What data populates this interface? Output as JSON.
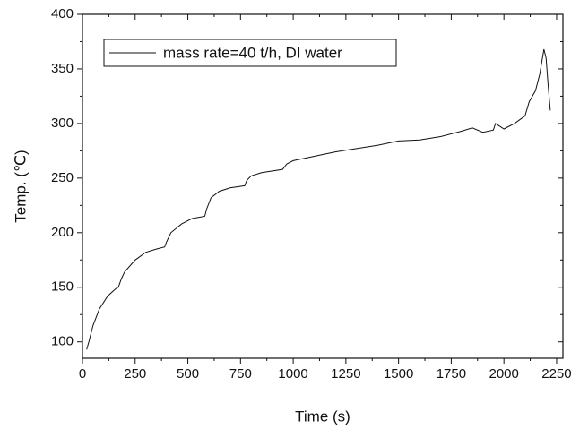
{
  "chart_data": {
    "type": "line",
    "xlabel": "Time (s)",
    "ylabel": "Temp. (℃)",
    "x": [
      20,
      30,
      50,
      80,
      120,
      160,
      170,
      185,
      200,
      250,
      300,
      350,
      390,
      400,
      420,
      470,
      520,
      580,
      590,
      610,
      650,
      700,
      770,
      780,
      800,
      850,
      950,
      970,
      1000,
      1100,
      1200,
      1300,
      1400,
      1500,
      1600,
      1700,
      1800,
      1850,
      1900,
      1950,
      1960,
      2000,
      2050,
      2100,
      2120,
      2150,
      2170,
      2190,
      2200,
      2210,
      2220
    ],
    "series": [
      {
        "name": "mass rate=40 t/h, DI water",
        "color": "#111111",
        "values": [
          93,
          100,
          115,
          130,
          142,
          149,
          150,
          158,
          164,
          175,
          182,
          185,
          187,
          192,
          200,
          208,
          213,
          215,
          222,
          232,
          238,
          241,
          243,
          248,
          252,
          255,
          258,
          263,
          266,
          270,
          274,
          277,
          280,
          284,
          285,
          288,
          293,
          296,
          292,
          294,
          300,
          295,
          300,
          307,
          320,
          330,
          345,
          368,
          360,
          335,
          312
        ]
      }
    ],
    "xlim": [
      0,
      2280
    ],
    "xticks": [
      0,
      250,
      500,
      750,
      1000,
      1250,
      1500,
      1750,
      2000,
      2250
    ],
    "ylim": [
      85,
      400
    ],
    "yticks": [
      100,
      150,
      200,
      250,
      300,
      350,
      400
    ],
    "legend": "upper left",
    "grid": false
  }
}
